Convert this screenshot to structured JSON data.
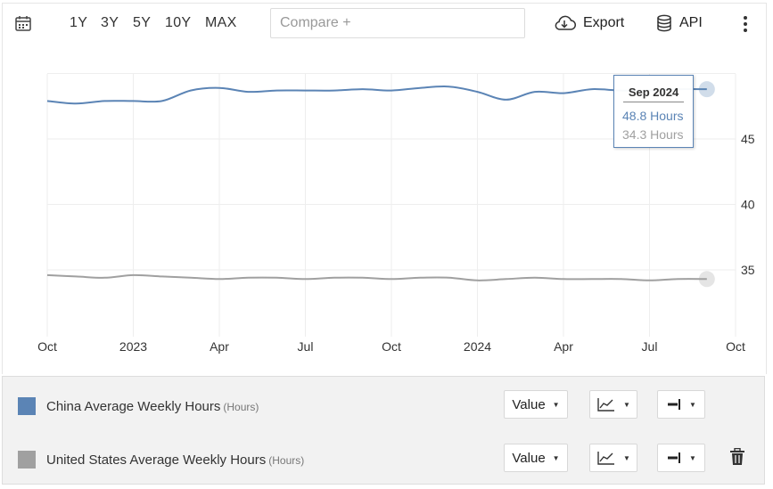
{
  "toolbar": {
    "ranges": [
      "1Y",
      "3Y",
      "5Y",
      "10Y",
      "MAX"
    ],
    "compare_placeholder": "Compare +",
    "export_label": "Export",
    "api_label": "API"
  },
  "chart_data": {
    "type": "line",
    "x_tick_labels": [
      "Oct",
      "2023",
      "Apr",
      "Jul",
      "Oct",
      "2024",
      "Apr",
      "Jul",
      "Oct"
    ],
    "y_tick_labels": [
      "35",
      "40",
      "45"
    ],
    "ylim": [
      30,
      50
    ],
    "grid": true,
    "series": [
      {
        "name": "China Average Weekly Hours",
        "unit": "Hours",
        "color": "#5b84b5",
        "x": [
          "2022-10",
          "2022-11",
          "2022-12",
          "2023-01",
          "2023-02",
          "2023-03",
          "2023-04",
          "2023-05",
          "2023-06",
          "2023-07",
          "2023-08",
          "2023-09",
          "2023-10",
          "2023-11",
          "2023-12",
          "2024-01",
          "2024-02",
          "2024-03",
          "2024-04",
          "2024-05",
          "2024-06",
          "2024-07",
          "2024-08",
          "2024-09"
        ],
        "values": [
          47.9,
          47.7,
          47.9,
          47.9,
          47.9,
          48.7,
          48.9,
          48.6,
          48.7,
          48.7,
          48.7,
          48.8,
          48.7,
          48.9,
          49.0,
          48.6,
          48.0,
          48.6,
          48.5,
          48.8,
          48.7,
          48.7,
          48.8,
          48.8
        ]
      },
      {
        "name": "United States Average Weekly Hours",
        "unit": "Hours",
        "color": "#a0a0a0",
        "x": [
          "2022-10",
          "2022-11",
          "2022-12",
          "2023-01",
          "2023-02",
          "2023-03",
          "2023-04",
          "2023-05",
          "2023-06",
          "2023-07",
          "2023-08",
          "2023-09",
          "2023-10",
          "2023-11",
          "2023-12",
          "2024-01",
          "2024-02",
          "2024-03",
          "2024-04",
          "2024-05",
          "2024-06",
          "2024-07",
          "2024-08",
          "2024-09"
        ],
        "values": [
          34.6,
          34.5,
          34.4,
          34.6,
          34.5,
          34.4,
          34.3,
          34.4,
          34.4,
          34.3,
          34.4,
          34.4,
          34.3,
          34.4,
          34.4,
          34.2,
          34.3,
          34.4,
          34.3,
          34.3,
          34.3,
          34.2,
          34.3,
          34.3
        ]
      }
    ]
  },
  "tooltip": {
    "date": "Sep 2024",
    "china": "48.8 Hours",
    "us": "34.3 Hours"
  },
  "legend": {
    "rows": [
      {
        "label": "China Average Weekly Hours",
        "unit": "(Hours)",
        "color": "#5b84b5",
        "value_select": "Value"
      },
      {
        "label": "United States Average Weekly Hours",
        "unit": "(Hours)",
        "color": "#a0a0a0",
        "value_select": "Value"
      }
    ]
  }
}
